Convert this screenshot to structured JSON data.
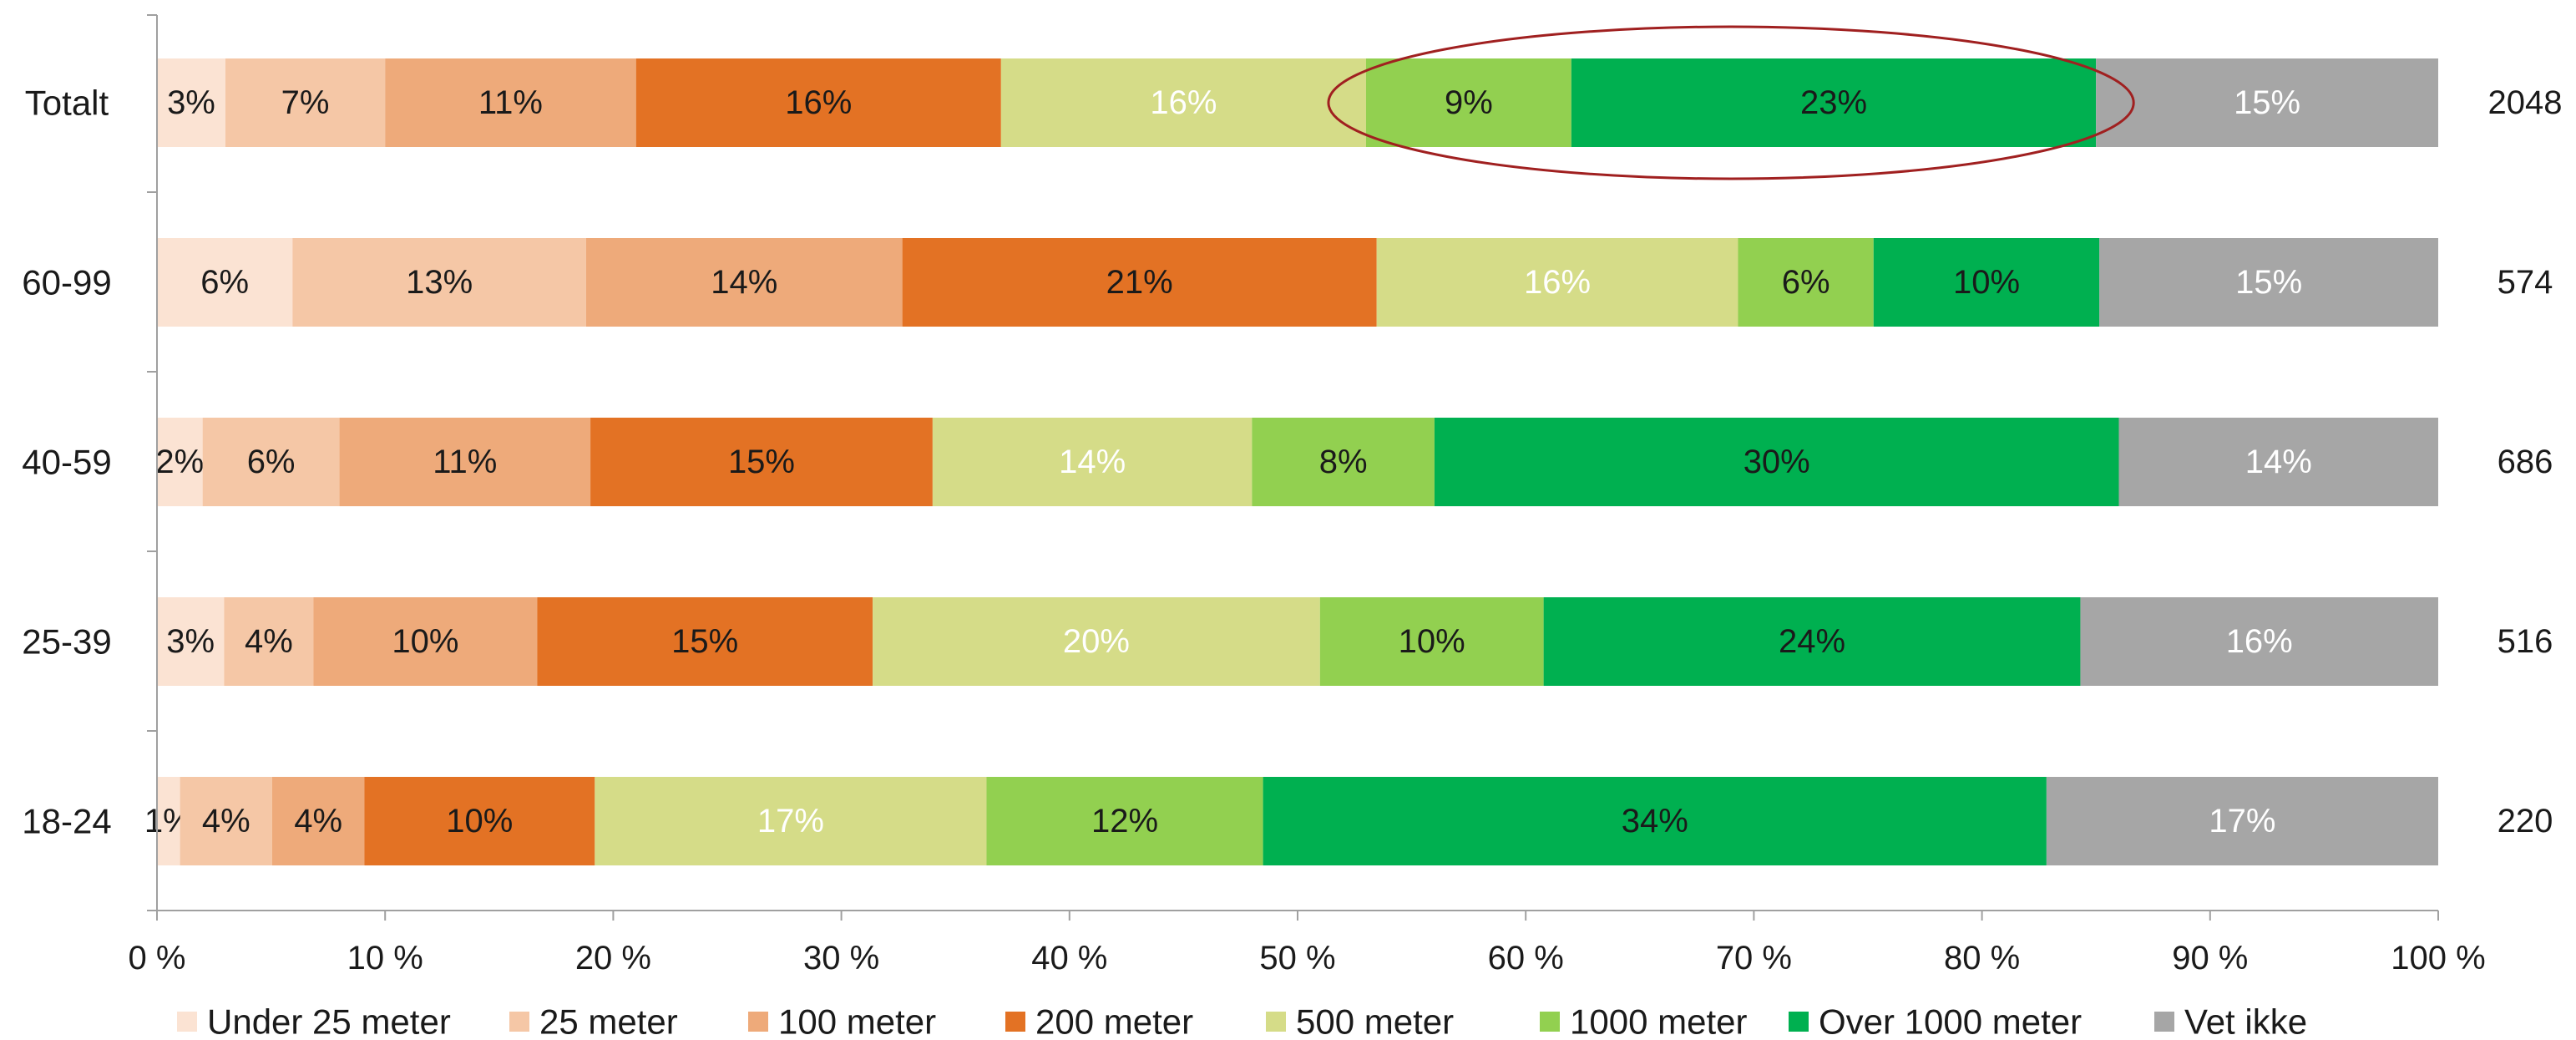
{
  "chart_data": {
    "type": "bar",
    "orientation": "horizontal",
    "stacked": "percent",
    "title": "",
    "xlabel": "",
    "ylabel": "",
    "xlim": [
      0,
      100
    ],
    "x_ticks": [
      "0 %",
      "10 %",
      "20 %",
      "30 %",
      "40 %",
      "50 %",
      "60 %",
      "70 %",
      "80 %",
      "90 %",
      "100 %"
    ],
    "categories": [
      "Totalt",
      "60-99",
      "40-59",
      "25-39",
      "18-24"
    ],
    "n": [
      "2048",
      "574",
      "686",
      "516",
      "220"
    ],
    "series": [
      {
        "name": "Under 25 meter",
        "color": "#fbe3d3",
        "label_color": "#1a1a1a",
        "values": [
          3,
          6,
          2,
          3,
          1
        ]
      },
      {
        "name": "25 meter",
        "color": "#f5c7a6",
        "label_color": "#1a1a1a",
        "values": [
          7,
          13,
          6,
          4,
          4
        ]
      },
      {
        "name": "100 meter",
        "color": "#eeaa7a",
        "label_color": "#1a1a1a",
        "values": [
          11,
          14,
          11,
          10,
          4
        ]
      },
      {
        "name": "200 meter",
        "color": "#e37224",
        "label_color": "#1a1a1a",
        "values": [
          16,
          21,
          15,
          15,
          10
        ]
      },
      {
        "name": "500 meter",
        "color": "#d5dc88",
        "label_color": "#ffffff",
        "values": [
          16,
          16,
          14,
          20,
          17
        ]
      },
      {
        "name": "1000 meter",
        "color": "#92d050",
        "label_color": "#1a1a1a",
        "values": [
          9,
          6,
          8,
          10,
          12
        ]
      },
      {
        "name": "Over 1000 meter",
        "color": "#00b050",
        "label_color": "#1a1a1a",
        "values": [
          23,
          10,
          30,
          24,
          34
        ]
      },
      {
        "name": "Vet ikke",
        "color": "#a6a6a6",
        "label_color": "#ffffff",
        "values": [
          15,
          15,
          14,
          16,
          17
        ]
      }
    ],
    "legend_position": "bottom",
    "grid": false,
    "annotation": {
      "type": "ellipse",
      "row": "Totalt",
      "series": [
        "1000 meter",
        "Over 1000 meter"
      ],
      "color": "#a02020"
    }
  }
}
